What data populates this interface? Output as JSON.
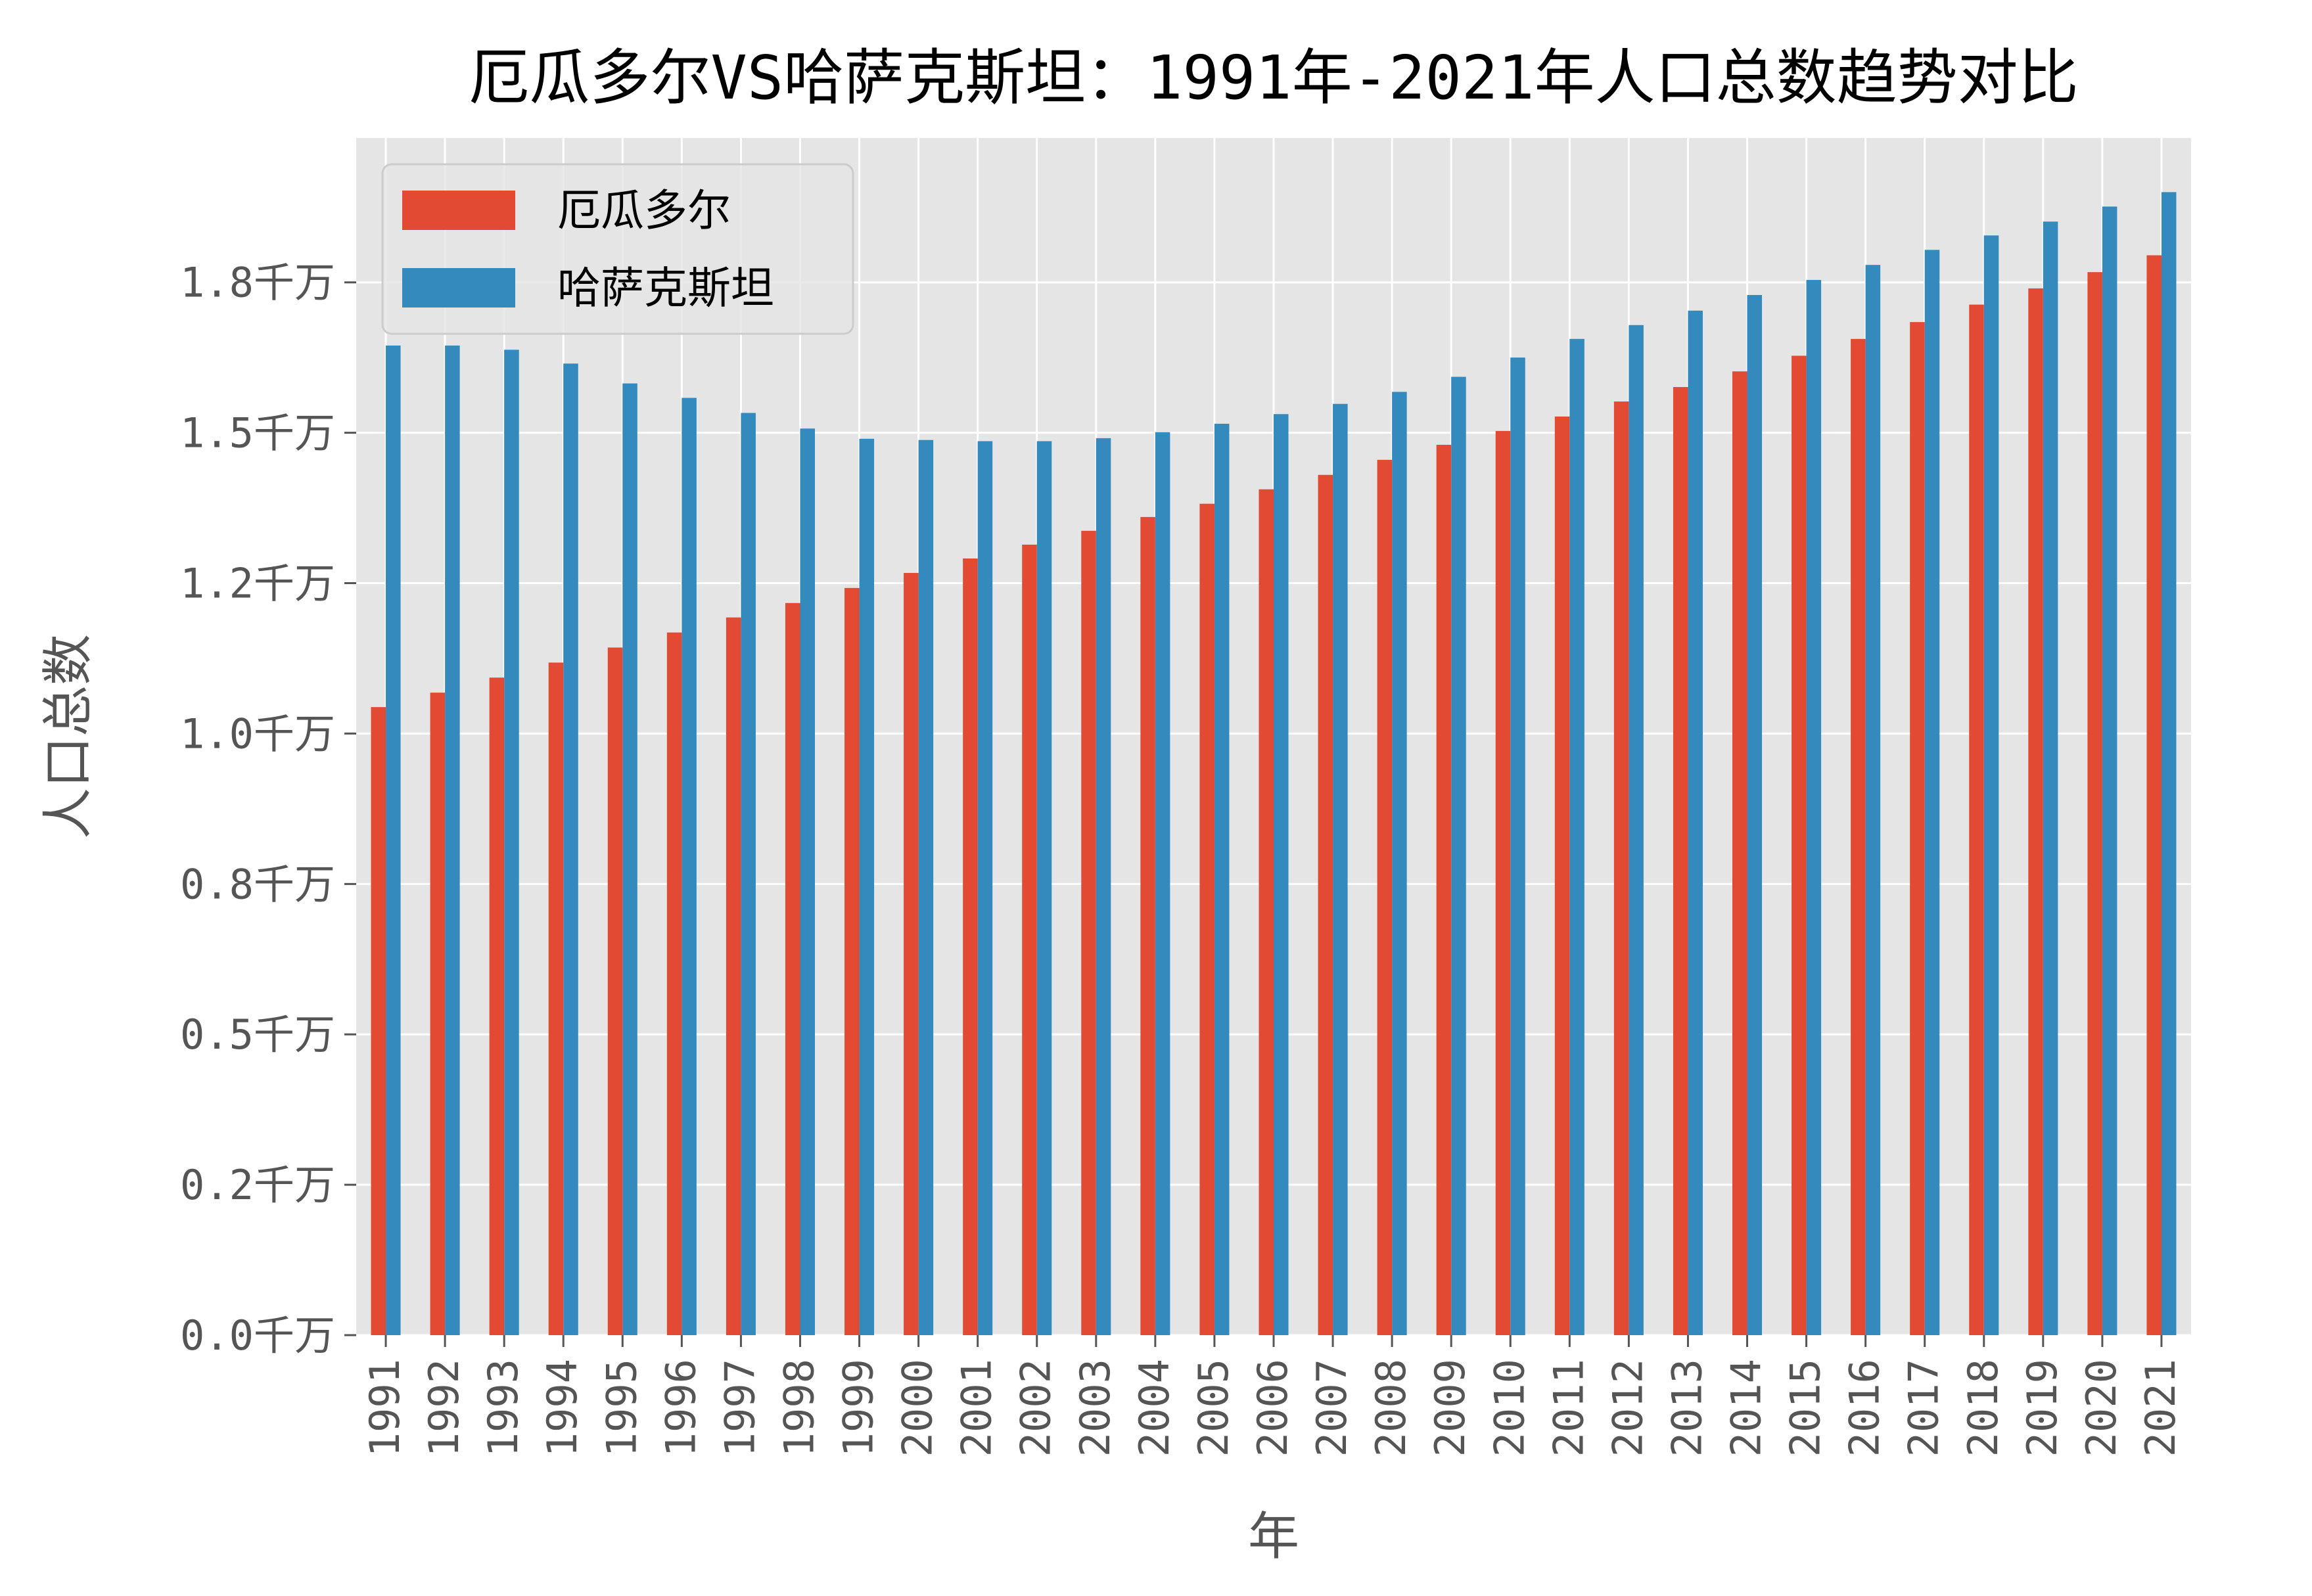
{
  "chart_data": {
    "type": "bar",
    "title": "厄瓜多尔VS哈萨克斯坦：1991年-2021年人口总数趋势对比",
    "xlabel": "年",
    "ylabel": "人口总数",
    "categories": [
      "1991",
      "1992",
      "1993",
      "1994",
      "1995",
      "1996",
      "1997",
      "1998",
      "1999",
      "2000",
      "2001",
      "2002",
      "2003",
      "2004",
      "2005",
      "2006",
      "2007",
      "2008",
      "2009",
      "2010",
      "2011",
      "2012",
      "2013",
      "2014",
      "2015",
      "2016",
      "2017",
      "2018",
      "2019",
      "2020",
      "2021"
    ],
    "ylim": [
      0,
      19.9
    ],
    "y_unit_note": "千万",
    "yticks": [
      {
        "value": 0.0,
        "label": "0.0千万"
      },
      {
        "value": 2.5,
        "label": "0.2千万"
      },
      {
        "value": 5.0,
        "label": "0.5千万"
      },
      {
        "value": 7.5,
        "label": "0.8千万"
      },
      {
        "value": 10.0,
        "label": "1.0千万"
      },
      {
        "value": 12.5,
        "label": "1.2千万"
      },
      {
        "value": 15.0,
        "label": "1.5千万"
      },
      {
        "value": 17.5,
        "label": "1.8千万"
      }
    ],
    "series": [
      {
        "name": "厄瓜多尔",
        "color": "#E24A33",
        "values": [
          10.44,
          10.68,
          10.93,
          11.18,
          11.43,
          11.68,
          11.93,
          12.17,
          12.42,
          12.67,
          12.91,
          13.14,
          13.37,
          13.6,
          13.82,
          14.06,
          14.3,
          14.55,
          14.8,
          15.03,
          15.27,
          15.52,
          15.76,
          16.02,
          16.28,
          16.56,
          16.84,
          17.13,
          17.4,
          17.67,
          17.95
        ]
      },
      {
        "name": "哈萨克斯坦",
        "color": "#348ABD",
        "values": [
          16.45,
          16.45,
          16.38,
          16.15,
          15.82,
          15.58,
          15.33,
          15.07,
          14.9,
          14.88,
          14.86,
          14.86,
          14.91,
          15.01,
          15.15,
          15.31,
          15.48,
          15.68,
          15.93,
          16.25,
          16.56,
          16.79,
          17.03,
          17.29,
          17.54,
          17.79,
          18.04,
          18.28,
          18.51,
          18.76,
          19.0
        ]
      }
    ],
    "legend_position": "top-left",
    "grid": true,
    "background": "#E5E5E5"
  }
}
